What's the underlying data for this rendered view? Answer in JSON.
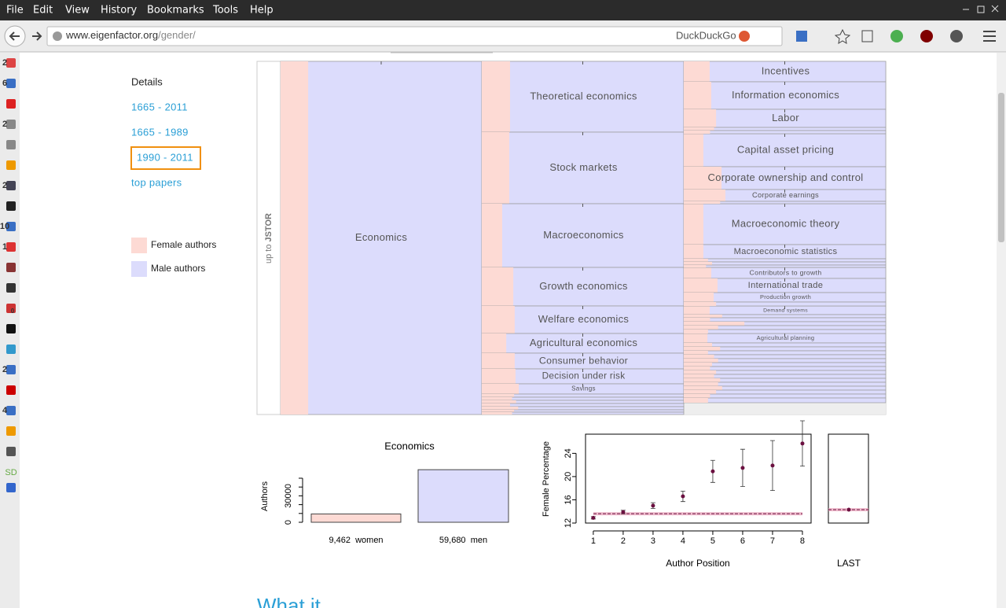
{
  "menu": [
    "File",
    "Edit",
    "View",
    "History",
    "Bookmarks",
    "Tools",
    "Help"
  ],
  "address": {
    "host": "www.eigenfactor.org",
    "path": "/gender/",
    "search": "DuckDuckGo"
  },
  "sidebar": {
    "badges": [
      "2",
      "6",
      "2",
      "2",
      "10",
      "1",
      "0",
      "2",
      "4"
    ],
    "sd": "SD"
  },
  "nav": {
    "heading": "Details",
    "links": [
      "1665 - 2011",
      "1665 - 1989",
      "1990 - 2011",
      "top papers"
    ],
    "selected": 2
  },
  "legend": [
    {
      "label": "Female authors",
      "color": "#fddad4"
    },
    {
      "label": "Male authors",
      "color": "#dcdcfc"
    }
  ],
  "treemap": {
    "root_prefix": "up to",
    "root_label": "JSTOR",
    "columns": [
      [
        {
          "label": "Economics",
          "female": 13.7
        }
      ],
      [
        {
          "label": "Theoretical economics",
          "female": 14.0
        },
        {
          "label": "Stock markets",
          "female": 13.6
        },
        {
          "label": "Macroeconomics",
          "female": 10.1
        },
        {
          "label": "Growth economics",
          "female": 15.6
        },
        {
          "label": "Welfare economics",
          "female": 16.3
        },
        {
          "label": "Agricultural economics",
          "female": 12.1
        },
        {
          "label": "Consumer behavior",
          "female": 16.3
        },
        {
          "label": "Decision under risk",
          "female": 16.7
        },
        {
          "label": "Savings",
          "female": 18.3
        }
      ],
      [
        {
          "label": "Incentives",
          "female": 12.8
        },
        {
          "label": "Information economics",
          "female": 13.6
        },
        {
          "label": "Labor",
          "female": 16.0
        },
        {
          "label": "Capital asset pricing",
          "female": 9.7
        },
        {
          "label": "Corporate ownership and control",
          "female": 18.7
        },
        {
          "label": "Corporate earnings",
          "female": 20.6
        },
        {
          "label": "Macroeconomic theory",
          "female": 9.7
        },
        {
          "label": "Macroeconomic statistics",
          "female": 9.7
        },
        {
          "label": "Contributors to growth",
          "female": 13.6
        },
        {
          "label": "International trade",
          "female": 16.7
        },
        {
          "label": "Production growth",
          "female": 14.8
        },
        {
          "label": "Demand systems",
          "female": 12.8
        },
        {
          "label": "Agricultural planning",
          "female": 11.7
        }
      ]
    ]
  },
  "bar_chart": {
    "type": "bar",
    "title": "Economics",
    "ylabel": "Authors",
    "categories": [
      "women",
      "men"
    ],
    "values": [
      9462,
      59680
    ],
    "value_labels": [
      "9,462",
      "59,680"
    ],
    "colors": [
      "#fddad4",
      "#dcdcfc"
    ],
    "ylim": [
      0,
      50000
    ],
    "yticks": [
      0,
      30000
    ],
    "yminor": [
      10000,
      20000,
      40000,
      50000
    ]
  },
  "dot_chart": {
    "type": "errorbar",
    "ylabel": "Female Percentage",
    "xlabel": "Author Position",
    "x": [
      1,
      2,
      3,
      4,
      5,
      6,
      7,
      8
    ],
    "values": [
      12.9,
      13.9,
      15.0,
      16.6,
      20.9,
      21.5,
      21.9,
      25.7
    ],
    "errors": [
      0.2,
      0.3,
      0.5,
      0.9,
      1.9,
      3.2,
      4.3,
      3.9
    ],
    "color": "#6b1040",
    "xlim": [
      0.74,
      8.29
    ],
    "xticks": [
      1,
      2,
      3,
      4,
      5,
      6,
      7,
      8
    ],
    "ylim": [
      12,
      27.3
    ],
    "yticks": [
      12,
      16,
      20,
      24
    ],
    "mean": 13.6,
    "last_label": "LAST",
    "last": 14.3
  },
  "footer_heading": "What it"
}
